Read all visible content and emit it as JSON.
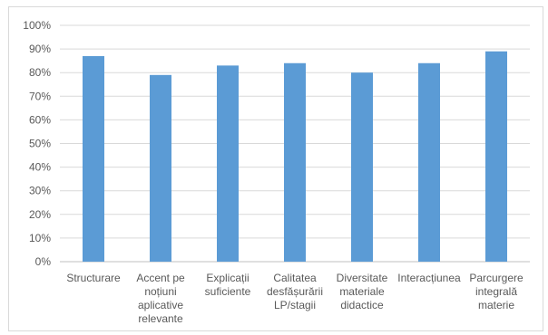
{
  "chart_data": {
    "type": "bar",
    "title": "",
    "xlabel": "",
    "ylabel": "",
    "ylim": [
      0,
      100
    ],
    "yticks": [
      "0%",
      "10%",
      "20%",
      "30%",
      "40%",
      "50%",
      "60%",
      "70%",
      "80%",
      "90%",
      "100%"
    ],
    "grid": true,
    "legend": "none",
    "bar_color": "#5b9bd5",
    "categories": [
      [
        "Structurare"
      ],
      [
        "Accent pe",
        "noțiuni",
        "aplicative",
        "relevante"
      ],
      [
        "Explicații",
        "suficiente"
      ],
      [
        "Calitatea",
        "desfășurării",
        "LP/stagii"
      ],
      [
        "Diversitate",
        "materiale",
        "didactice"
      ],
      [
        "Interacțiunea"
      ],
      [
        "Parcurgere",
        "integrală",
        "materie"
      ]
    ],
    "values": [
      87,
      79,
      83,
      84,
      80,
      84,
      89
    ]
  }
}
